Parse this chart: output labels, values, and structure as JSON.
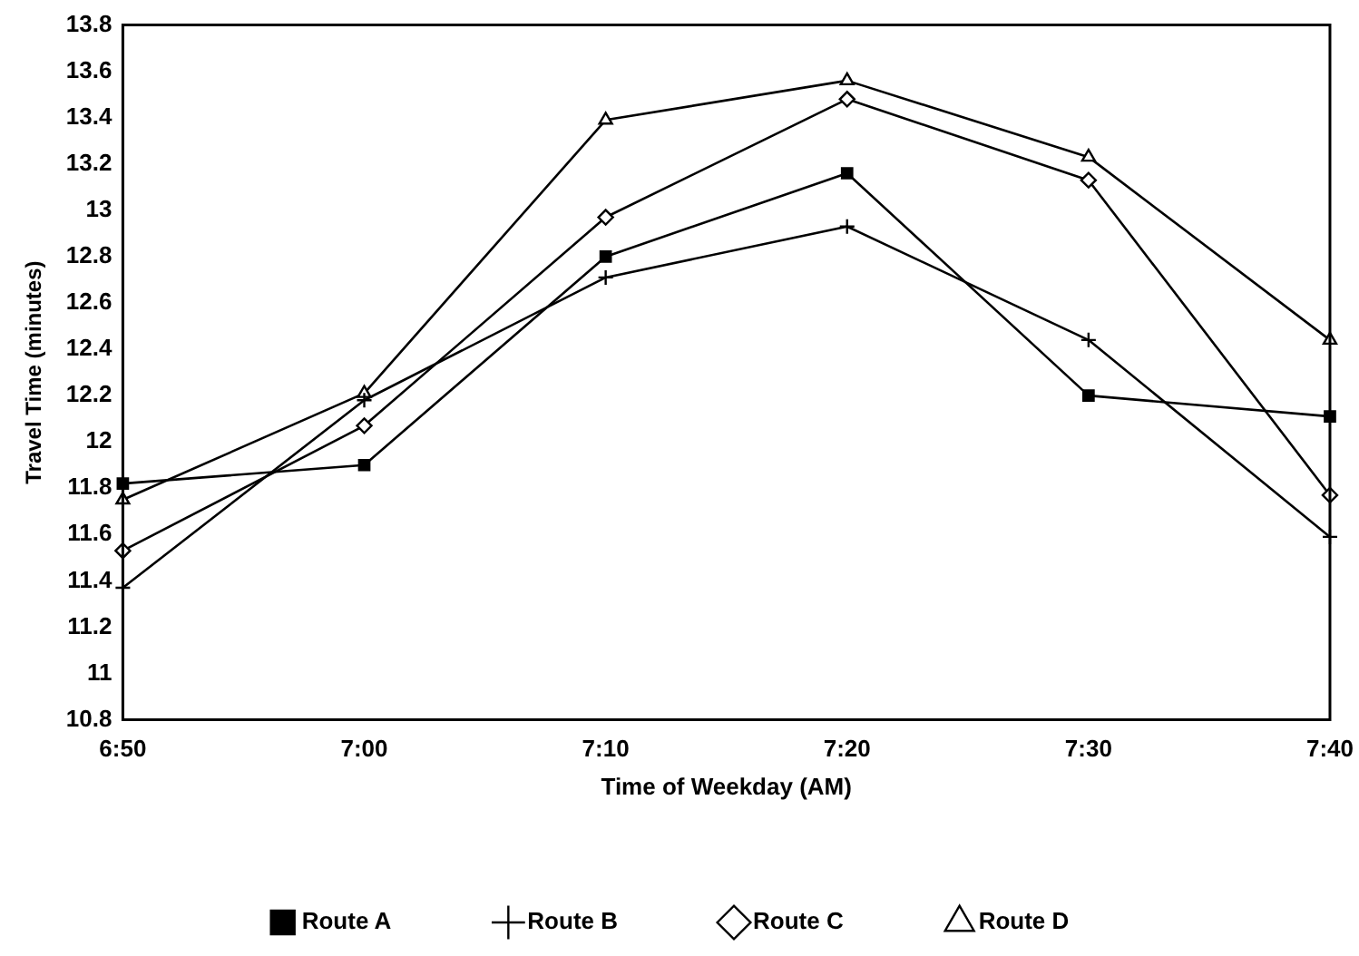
{
  "chart_data": {
    "type": "line",
    "xlabel": "Time of Weekday (AM)",
    "ylabel": "Travel Time (minutes)",
    "categories": [
      "6:50",
      "7:00",
      "7:10",
      "7:20",
      "7:30",
      "7:40"
    ],
    "series": [
      {
        "name": "Route A",
        "color": "#000000",
        "marker": "square",
        "values": [
          11.82,
          11.9,
          12.8,
          13.16,
          12.2,
          12.11
        ]
      },
      {
        "name": "Route B",
        "color": "#000000",
        "marker": "cross",
        "values": [
          11.37,
          12.18,
          12.71,
          12.93,
          12.44,
          11.59
        ]
      },
      {
        "name": "Route C",
        "color": "#000000",
        "marker": "diamond",
        "values": [
          11.53,
          12.07,
          12.97,
          13.48,
          13.13,
          11.77
        ]
      },
      {
        "name": "Route D",
        "color": "#000000",
        "marker": "triangle",
        "values": [
          11.75,
          12.21,
          13.39,
          13.56,
          13.23,
          12.44
        ]
      }
    ],
    "ylim": [
      10.8,
      13.8
    ],
    "yticks": [
      {
        "value": 10.8,
        "label": "10.8"
      },
      11,
      {
        "value": 11.2,
        "label": "11.2"
      },
      {
        "value": 11.4,
        "label": "11.4"
      },
      {
        "value": 11.6,
        "label": "11.6"
      },
      {
        "value": 11.8,
        "label": "11.8"
      },
      12,
      {
        "value": 12.2,
        "label": "12.2"
      },
      {
        "value": 12.4,
        "label": "12.4"
      },
      {
        "value": 12.6,
        "label": "12.6"
      },
      {
        "value": 12.8,
        "label": "12.8"
      },
      13,
      {
        "value": 13.2,
        "label": "13.2"
      },
      {
        "value": 13.4,
        "label": "13.4"
      },
      {
        "value": 13.6,
        "label": "13.6"
      },
      {
        "value": 13.8,
        "label": "13.8"
      }
    ],
    "grid": false,
    "legend": "bottom",
    "line_style": "solid"
  }
}
